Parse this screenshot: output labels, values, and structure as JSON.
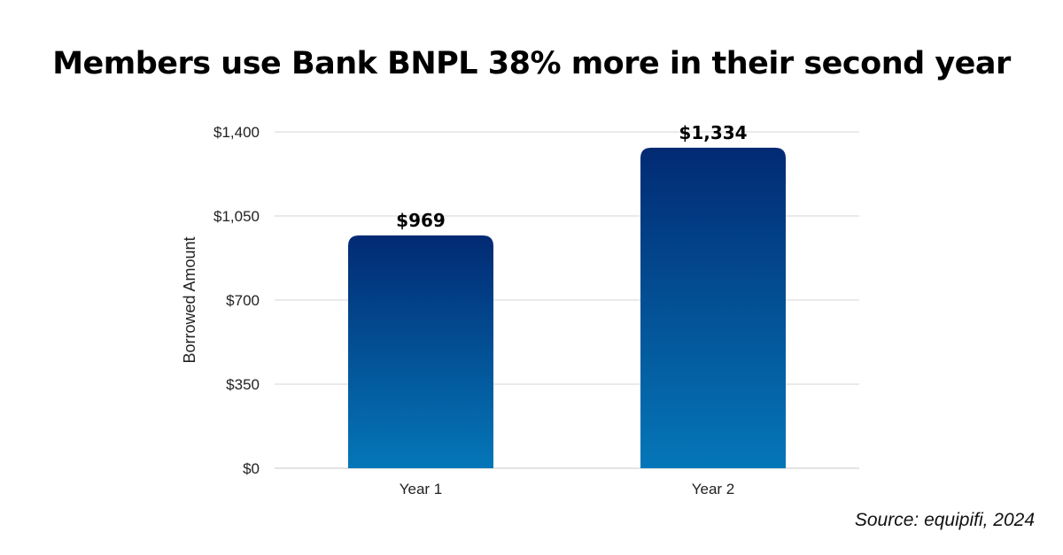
{
  "title": "Members use Bank BNPL 38% more in their second year",
  "source": "Source: equipifi, 2024",
  "colors": {
    "bar_top": "#022a73",
    "bar_bottom": "#0477b8",
    "grid": "#d4d4d4"
  },
  "chart_data": {
    "type": "bar",
    "title": "Members use Bank BNPL 38% more in their second year",
    "categories": [
      "Year 1",
      "Year 2"
    ],
    "values": [
      969,
      1334
    ],
    "data_labels": [
      "$969",
      "$1,334"
    ],
    "xlabel": "",
    "ylabel": "Borrowed Amount",
    "ylim": [
      0,
      1400
    ],
    "yticks": [
      0,
      350,
      700,
      1050,
      1400
    ],
    "ytick_labels": [
      "$0",
      "$350",
      "$700",
      "$1,050",
      "$1,400"
    ],
    "grid": true,
    "legend": "none"
  }
}
